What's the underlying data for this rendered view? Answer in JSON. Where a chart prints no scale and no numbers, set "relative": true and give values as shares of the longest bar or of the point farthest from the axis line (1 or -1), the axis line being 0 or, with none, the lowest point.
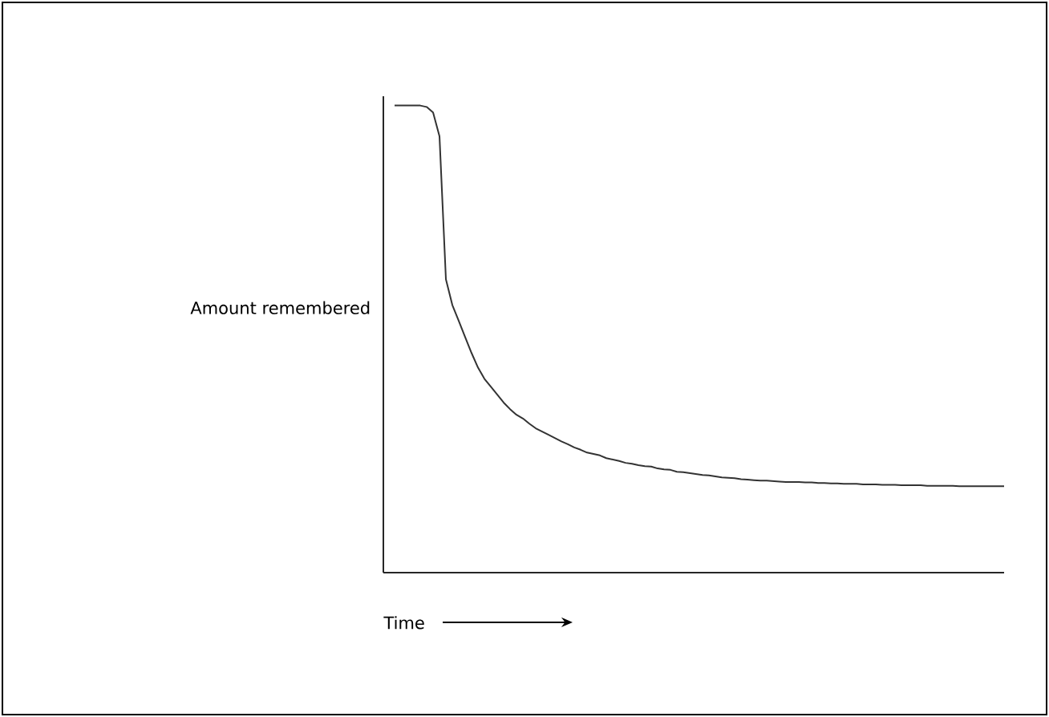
{
  "chart_data": {
    "type": "line",
    "relative": true,
    "color": "#333333",
    "xlabel": "Time",
    "ylabel": "Amount remembered",
    "categories": [
      null,
      null,
      null,
      null,
      null,
      null,
      null,
      null,
      null,
      null,
      null,
      null,
      null,
      null,
      null,
      null,
      null,
      null,
      null,
      null,
      null,
      null,
      null,
      null,
      null,
      null,
      null,
      null,
      null,
      null,
      null,
      null,
      null,
      null,
      null,
      null,
      null,
      null,
      null,
      null,
      null,
      null,
      null,
      null,
      null,
      null,
      null,
      null,
      null,
      null,
      null,
      null,
      null,
      null,
      null,
      null,
      null,
      null,
      null,
      null,
      null,
      null,
      null,
      null,
      null,
      null,
      null,
      null,
      null,
      null,
      null,
      null,
      null,
      null,
      null,
      null,
      null,
      null,
      null,
      null,
      null,
      null,
      null,
      null,
      null,
      null,
      null,
      null,
      null,
      null,
      null,
      null,
      null,
      null,
      null,
      null
    ],
    "values": [
      1.0,
      1.0,
      1.0,
      1.0,
      1.0,
      0.997,
      0.985,
      0.934,
      0.628,
      0.573,
      0.539,
      0.504,
      0.47,
      0.439,
      0.415,
      0.398,
      0.381,
      0.364,
      0.35,
      0.338,
      0.33,
      0.319,
      0.309,
      0.302,
      0.295,
      0.288,
      0.281,
      0.275,
      0.268,
      0.263,
      0.257,
      0.254,
      0.251,
      0.245,
      0.242,
      0.239,
      0.235,
      0.233,
      0.23,
      0.228,
      0.227,
      0.223,
      0.221,
      0.22,
      0.216,
      0.215,
      0.213,
      0.211,
      0.209,
      0.208,
      0.206,
      0.204,
      0.203,
      0.202,
      0.2,
      0.199,
      0.198,
      0.197,
      0.197,
      0.196,
      0.195,
      0.194,
      0.194,
      0.194,
      0.193,
      0.193,
      0.192,
      0.192,
      0.191,
      0.191,
      0.19,
      0.19,
      0.19,
      0.189,
      0.189,
      0.189,
      0.188,
      0.188,
      0.188,
      0.187,
      0.187,
      0.187,
      0.187,
      0.186,
      0.186,
      0.186,
      0.186,
      0.186,
      0.185,
      0.185,
      0.185,
      0.185,
      0.185,
      0.185,
      0.185,
      0.185
    ]
  }
}
